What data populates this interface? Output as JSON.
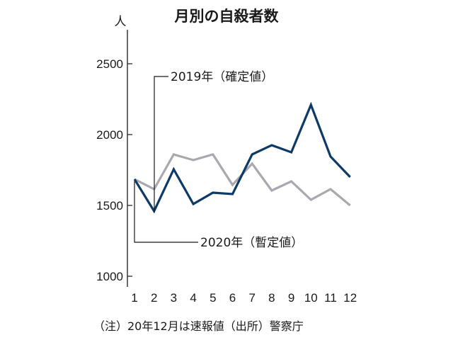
{
  "chart_data": {
    "type": "line",
    "title": "月別の自殺者数",
    "ylabel": "人",
    "xlabel": "",
    "categories": [
      "1",
      "2",
      "3",
      "4",
      "5",
      "6",
      "7",
      "8",
      "9",
      "10",
      "11",
      "12"
    ],
    "yticks": [
      "1000",
      "1500",
      "2000",
      "2500"
    ],
    "ylim": [
      1000,
      2700
    ],
    "grid": false,
    "series": [
      {
        "name": "2019年（確定値）",
        "color": "#a8a8b0",
        "values": [
          1685,
          1615,
          1860,
          1820,
          1860,
          1645,
          1795,
          1605,
          1670,
          1540,
          1615,
          1500
        ]
      },
      {
        "name": "2020年（暫定値）",
        "color": "#0d3a66",
        "values": [
          1685,
          1460,
          1755,
          1510,
          1590,
          1580,
          1860,
          1925,
          1875,
          2210,
          1845,
          1700
        ]
      }
    ],
    "note": "（注）20年12月は速報値（出所）警察庁"
  }
}
